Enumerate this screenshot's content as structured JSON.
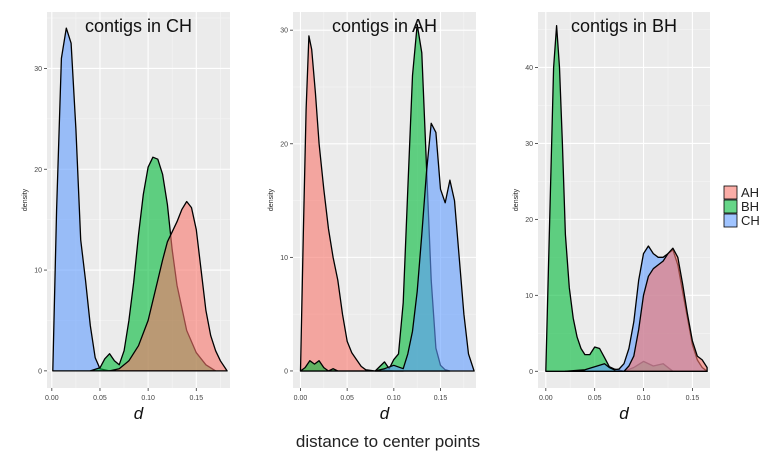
{
  "figure_xlabel": "distance to center points",
  "legend": {
    "items": [
      {
        "label": "AH",
        "color": "#F8766D"
      },
      {
        "label": "BH",
        "color": "#00BA38"
      },
      {
        "label": "CH",
        "color": "#619CFF"
      }
    ]
  },
  "chart_data": [
    {
      "type": "area",
      "title": "contigs in CH",
      "xlabel": "d",
      "ylabel": "density",
      "xlim": [
        -0.005,
        0.185
      ],
      "ylim": [
        -1.7,
        35.6
      ],
      "xticks": [
        0.0,
        0.05,
        0.1,
        0.15
      ],
      "xtick_labels": [
        "0.00",
        "0.05",
        "0.10",
        "0.15"
      ],
      "yticks": [
        0,
        10,
        20,
        30
      ],
      "ytick_labels": [
        "0",
        "10",
        "20",
        "30"
      ],
      "grid": true,
      "series": [
        {
          "name": "CH",
          "x": [
            0.001,
            0.005,
            0.01,
            0.015,
            0.02,
            0.025,
            0.03,
            0.035,
            0.04,
            0.045,
            0.05,
            0.055,
            0.06,
            0.065,
            0.07
          ],
          "y": [
            0,
            16,
            31,
            34,
            32.5,
            24,
            13,
            9,
            4.5,
            1.3,
            0.2,
            0.1,
            0,
            0,
            0
          ]
        },
        {
          "name": "BH",
          "x": [
            0.04,
            0.05,
            0.055,
            0.06,
            0.065,
            0.07,
            0.075,
            0.08,
            0.085,
            0.09,
            0.095,
            0.1,
            0.105,
            0.11,
            0.115,
            0.12,
            0.125,
            0.13,
            0.14,
            0.15,
            0.16,
            0.17
          ],
          "y": [
            0,
            0.3,
            1.2,
            1.7,
            1,
            0.6,
            2,
            5,
            8.8,
            13.5,
            17.5,
            20.2,
            21.2,
            21,
            19.5,
            16.5,
            12,
            8.5,
            4,
            1.8,
            0.6,
            0
          ]
        },
        {
          "name": "AH",
          "x": [
            0.06,
            0.07,
            0.08,
            0.09,
            0.1,
            0.11,
            0.115,
            0.12,
            0.125,
            0.13,
            0.135,
            0.14,
            0.145,
            0.15,
            0.155,
            0.16,
            0.165,
            0.17,
            0.175,
            0.182
          ],
          "y": [
            0,
            0.2,
            1,
            2.5,
            5,
            9,
            11,
            12.8,
            13.8,
            14.8,
            16,
            16.8,
            16.2,
            14,
            10,
            6,
            3.5,
            2,
            1,
            0
          ]
        }
      ]
    },
    {
      "type": "area",
      "title": "contigs in AH",
      "xlabel": "d",
      "ylabel": "density",
      "xlim": [
        -0.008,
        0.188
      ],
      "ylim": [
        -1.5,
        31.6
      ],
      "xticks": [
        0.0,
        0.05,
        0.1,
        0.15
      ],
      "xtick_labels": [
        "0.00",
        "0.05",
        "0.10",
        "0.15"
      ],
      "yticks": [
        0,
        10,
        20,
        30
      ],
      "ytick_labels": [
        "0",
        "10",
        "20",
        "30"
      ],
      "grid": true,
      "series": [
        {
          "name": "AH",
          "x": [
            0.0,
            0.003,
            0.006,
            0.009,
            0.012,
            0.016,
            0.02,
            0.025,
            0.03,
            0.035,
            0.04,
            0.045,
            0.05,
            0.055,
            0.06,
            0.065,
            0.07,
            0.08,
            0.09,
            0.1,
            0.11
          ],
          "y": [
            0,
            12,
            23,
            29.5,
            28.3,
            24.5,
            20,
            16,
            12.5,
            10,
            8,
            5,
            2.6,
            1.6,
            1,
            0.4,
            0.1,
            0,
            0.1,
            0,
            0
          ]
        },
        {
          "name": "BH",
          "x": [
            0.0,
            0.005,
            0.01,
            0.015,
            0.02,
            0.025,
            0.03,
            0.035,
            0.04,
            0.08,
            0.09,
            0.095,
            0.1,
            0.105,
            0.11,
            0.115,
            0.12,
            0.125,
            0.13,
            0.135,
            0.14,
            0.145,
            0.15,
            0.155,
            0.16
          ],
          "y": [
            0,
            0.3,
            0.9,
            0.6,
            0.9,
            0.3,
            0,
            0.2,
            0,
            0,
            0.8,
            0.2,
            1,
            1.5,
            6,
            16,
            26,
            30.5,
            28,
            18,
            8,
            2,
            0.5,
            0.1,
            0
          ]
        },
        {
          "name": "CH",
          "x": [
            0.08,
            0.09,
            0.1,
            0.11,
            0.115,
            0.12,
            0.125,
            0.13,
            0.135,
            0.14,
            0.145,
            0.15,
            0.155,
            0.16,
            0.165,
            0.17,
            0.175,
            0.18,
            0.186
          ],
          "y": [
            0,
            0.2,
            0.5,
            0.2,
            1.5,
            3.5,
            7,
            12,
            17.5,
            21.8,
            21,
            16,
            14.8,
            16.8,
            15,
            10,
            5,
            1.5,
            0
          ]
        }
      ]
    },
    {
      "type": "area",
      "title": "contigs in BH",
      "xlabel": "d",
      "ylabel": "density",
      "xlim": [
        -0.008,
        0.168
      ],
      "ylim": [
        -2.2,
        47.3
      ],
      "xticks": [
        0.0,
        0.05,
        0.1,
        0.15
      ],
      "xtick_labels": [
        "0.00",
        "0.05",
        "0.10",
        "0.15"
      ],
      "yticks": [
        0,
        10,
        20,
        30,
        40
      ],
      "ytick_labels": [
        "0",
        "10",
        "20",
        "30",
        "40"
      ],
      "grid": true,
      "series": [
        {
          "name": "BH",
          "x": [
            0.0,
            0.004,
            0.008,
            0.011,
            0.014,
            0.017,
            0.02,
            0.024,
            0.028,
            0.032,
            0.036,
            0.04,
            0.045,
            0.05,
            0.055,
            0.06,
            0.065,
            0.07,
            0.08,
            0.09,
            0.1,
            0.11,
            0.12,
            0.13
          ],
          "y": [
            0,
            20,
            40,
            45.5,
            40,
            30,
            18,
            11,
            7,
            4.5,
            3,
            2.2,
            2.2,
            3.2,
            3,
            1.8,
            0.6,
            0.3,
            0,
            0.5,
            1.3,
            0.7,
            1,
            0
          ]
        },
        {
          "name": "CH",
          "x": [
            0.02,
            0.04,
            0.05,
            0.06,
            0.065,
            0.07,
            0.075,
            0.08,
            0.085,
            0.09,
            0.095,
            0.1,
            0.105,
            0.11,
            0.115,
            0.12,
            0.125,
            0.13,
            0.135,
            0.14,
            0.145,
            0.15,
            0.155,
            0.16,
            0.165
          ],
          "y": [
            0,
            0.2,
            0.6,
            1,
            0.5,
            0.2,
            0.3,
            1,
            3,
            6.5,
            12,
            15.5,
            16.5,
            15.5,
            15,
            15,
            15.5,
            16,
            14,
            10.5,
            7,
            3.5,
            1.5,
            0.5,
            0
          ]
        },
        {
          "name": "AH",
          "x": [
            0.08,
            0.085,
            0.09,
            0.095,
            0.1,
            0.105,
            0.11,
            0.115,
            0.12,
            0.125,
            0.13,
            0.135,
            0.14,
            0.145,
            0.15,
            0.155,
            0.16,
            0.165
          ],
          "y": [
            0,
            0.7,
            2,
            5.5,
            10,
            12.5,
            13.5,
            14,
            14.5,
            15.5,
            16.2,
            15,
            11.5,
            7.5,
            4,
            2,
            1.5,
            0.5
          ]
        }
      ]
    }
  ]
}
